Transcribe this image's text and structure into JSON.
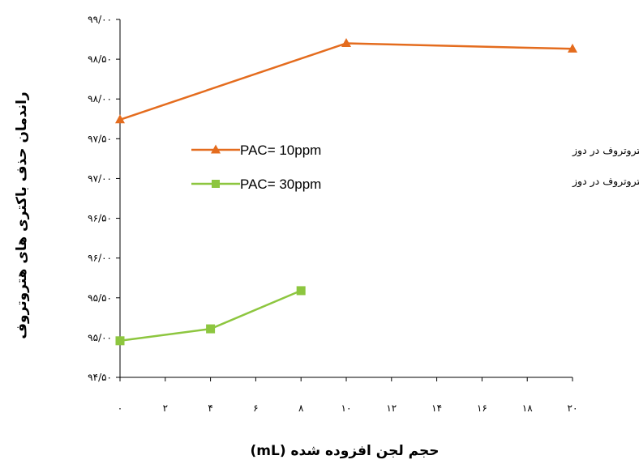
{
  "chart_data": {
    "type": "line",
    "x": [
      0,
      2,
      4,
      6,
      8,
      10,
      12,
      14,
      16,
      18,
      20
    ],
    "x_tick_labels": [
      "۰",
      "۲",
      "۴",
      "۶",
      "۸",
      "۱۰",
      "۱۲",
      "۱۴",
      "۱۶",
      "۱۸",
      "۲۰"
    ],
    "y_ticks": [
      94.5,
      95.0,
      95.5,
      96.0,
      96.5,
      97.0,
      97.5,
      98.0,
      98.5,
      99.0
    ],
    "y_tick_labels": [
      "۹۴/۵۰",
      "۹۵/۰۰",
      "۹۵/۵۰",
      "۹۶/۰۰",
      "۹۶/۵۰",
      "۹۷/۰۰",
      "۹۷/۵۰",
      "۹۸/۰۰",
      "۹۸/۵۰",
      "۹۹/۰۰"
    ],
    "xlim": [
      0,
      20
    ],
    "ylim": [
      94.5,
      99.0
    ],
    "xlabel": "حجم لجن افزوده شده (mL)",
    "ylabel": "راندمان حذف باکتری های هتروتروف",
    "legend_position": "right-middle",
    "grid": false,
    "series": [
      {
        "legend_text": "درصد راندمان حذف باکتری های هتروتروف در دوز",
        "name": "PAC= 10ppm",
        "color": "#E46C1E",
        "marker": "triangle",
        "points": [
          [
            0,
            97.74
          ],
          [
            10,
            98.7
          ],
          [
            20,
            98.63
          ]
        ]
      },
      {
        "legend_text": "درصد راندمان حذف باکتری های هتروتروف در دوز",
        "name": "PAC= 30ppm",
        "color": "#8DC63F",
        "marker": "square",
        "points": [
          [
            0,
            94.96
          ],
          [
            4,
            95.11
          ],
          [
            8,
            95.59
          ]
        ]
      }
    ]
  }
}
